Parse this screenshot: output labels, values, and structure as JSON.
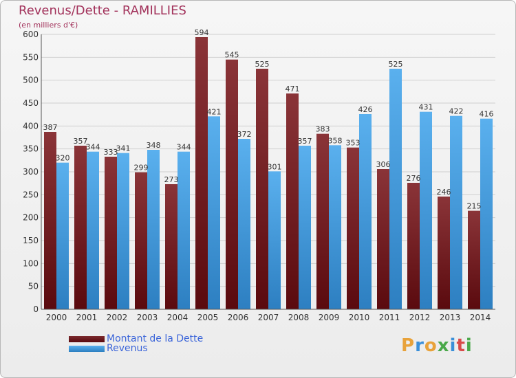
{
  "header": {
    "title": "Revenus/Dette - RAMILLIES",
    "subtitle": "(en milliers d'€)"
  },
  "legend": {
    "debt_label": "Montant de la Dette",
    "revenue_label": "Revenus"
  },
  "brand": {
    "letters": [
      "P",
      "r",
      "o",
      "x",
      "i",
      "t",
      "i"
    ],
    "colors": [
      "#e8a23a",
      "#3a8fd9",
      "#e8a23a",
      "#4aa84a",
      "#3a8fd9",
      "#d94a4a",
      "#4aa84a"
    ]
  },
  "colors": {
    "debt": "#7b2a2e",
    "revenue": "#4da6e6",
    "axis": "#555555",
    "grid": "#cfcfcf",
    "title": "#a2325b"
  },
  "chart_data": {
    "type": "bar",
    "title": "Revenus/Dette - RAMILLIES",
    "ylabel": "(en milliers d'€)",
    "categories": [
      "2000",
      "2001",
      "2002",
      "2003",
      "2004",
      "2005",
      "2006",
      "2007",
      "2008",
      "2009",
      "2010",
      "2011",
      "2012",
      "2013",
      "2014"
    ],
    "series": [
      {
        "name": "Montant de la Dette",
        "values": [
          387,
          357,
          333,
          299,
          273,
          594,
          545,
          525,
          471,
          383,
          353,
          306,
          276,
          246,
          215
        ]
      },
      {
        "name": "Revenus",
        "values": [
          320,
          344,
          341,
          348,
          344,
          421,
          372,
          301,
          357,
          358,
          426,
          525,
          431,
          422,
          416
        ]
      }
    ],
    "ylim": [
      0,
      600
    ],
    "yticks": [
      0,
      50,
      100,
      150,
      200,
      250,
      300,
      350,
      400,
      450,
      500,
      550,
      600
    ],
    "grid": true,
    "legend_position": "bottom-left"
  }
}
